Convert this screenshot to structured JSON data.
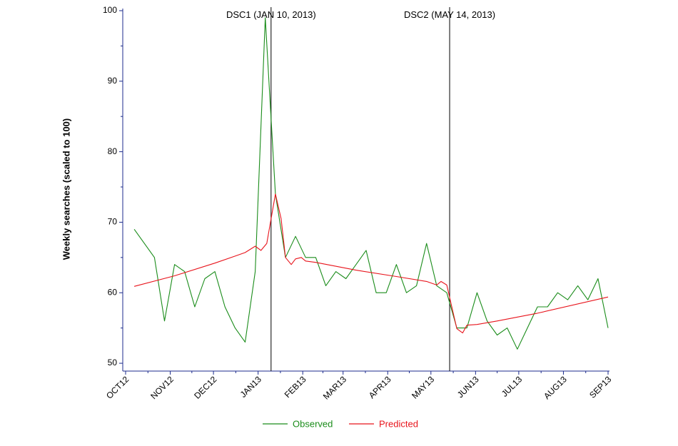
{
  "chart_data": {
    "type": "line",
    "title": "",
    "xlabel": "",
    "ylabel": "Weekly searches (scaled to 100)",
    "ylim": [
      49.5,
      100.3
    ],
    "yticks": [
      50,
      60,
      70,
      80,
      90,
      100
    ],
    "x_axis": {
      "type": "date",
      "range": [
        "2012-10-01",
        "2013-09-01"
      ],
      "ticks": [
        {
          "date": "2012-10-01",
          "label": "OCT12"
        },
        {
          "date": "2012-11-01",
          "label": "NOV12"
        },
        {
          "date": "2012-12-01",
          "label": "DEC12"
        },
        {
          "date": "2013-01-01",
          "label": "JAN13"
        },
        {
          "date": "2013-02-01",
          "label": "FEB13"
        },
        {
          "date": "2013-03-01",
          "label": "MAR13"
        },
        {
          "date": "2013-04-01",
          "label": "APR13"
        },
        {
          "date": "2013-05-01",
          "label": "MAY13"
        },
        {
          "date": "2013-06-01",
          "label": "JUN13"
        },
        {
          "date": "2013-07-01",
          "label": "JUL13"
        },
        {
          "date": "2013-08-01",
          "label": "AUG13"
        },
        {
          "date": "2013-09-01",
          "label": "SEP13"
        }
      ]
    },
    "events": [
      {
        "date": "2013-01-10",
        "label": "DSC1 (JAN 10, 2013)"
      },
      {
        "date": "2013-05-14",
        "label": "DSC2 (MAY 14, 2013)"
      }
    ],
    "series": [
      {
        "name": "Observed",
        "color": "#1a8c1a",
        "x": [
          "2012-10-07",
          "2012-10-21",
          "2012-10-28",
          "2012-11-04",
          "2012-11-11",
          "2012-11-18",
          "2012-11-25",
          "2012-12-02",
          "2012-12-09",
          "2012-12-16",
          "2012-12-23",
          "2012-12-30",
          "2013-01-06",
          "2013-01-13",
          "2013-01-20",
          "2013-01-27",
          "2013-02-03",
          "2013-02-10",
          "2013-02-17",
          "2013-02-24",
          "2013-03-03",
          "2013-03-10",
          "2013-03-17",
          "2013-03-24",
          "2013-03-31",
          "2013-04-07",
          "2013-04-14",
          "2013-04-21",
          "2013-04-28",
          "2013-05-05",
          "2013-05-12",
          "2013-05-19",
          "2013-05-26",
          "2013-06-02",
          "2013-06-09",
          "2013-06-16",
          "2013-06-23",
          "2013-06-30",
          "2013-07-07",
          "2013-07-14",
          "2013-07-21",
          "2013-07-28",
          "2013-08-04",
          "2013-08-11",
          "2013-08-18",
          "2013-08-25",
          "2013-09-01"
        ],
        "y": [
          69,
          65,
          56,
          64,
          63,
          58,
          62,
          63,
          58,
          55,
          53,
          63,
          99,
          74,
          65,
          68,
          65,
          65,
          61,
          63,
          62,
          64,
          66,
          60,
          60,
          64,
          60,
          61,
          67,
          61,
          60,
          55,
          55,
          60,
          56,
          54,
          55,
          52,
          55,
          58,
          58,
          60,
          59,
          61,
          59,
          62,
          55
        ]
      },
      {
        "name": "Predicted",
        "color": "#e8141c",
        "x": [
          "2012-10-07",
          "2012-11-04",
          "2012-12-02",
          "2012-12-16",
          "2012-12-23",
          "2012-12-30",
          "2013-01-03",
          "2013-01-07",
          "2013-01-13",
          "2013-01-17",
          "2013-01-20",
          "2013-01-24",
          "2013-01-27",
          "2013-01-31",
          "2013-02-03",
          "2013-02-10",
          "2013-03-10",
          "2013-04-07",
          "2013-04-28",
          "2013-05-05",
          "2013-05-08",
          "2013-05-12",
          "2013-05-19",
          "2013-05-23",
          "2013-05-26",
          "2013-06-02",
          "2013-06-16",
          "2013-07-14",
          "2013-09-01"
        ],
        "y": [
          60.9,
          62.4,
          64.2,
          65.2,
          65.7,
          66.6,
          66.0,
          67.0,
          74.0,
          70.5,
          65.0,
          64.0,
          64.8,
          65.0,
          64.5,
          64.3,
          63.2,
          62.3,
          61.6,
          61.1,
          61.6,
          61.1,
          54.9,
          54.3,
          55.4,
          55.5,
          56.0,
          57.1,
          59.4
        ]
      }
    ],
    "legend": {
      "position": "bottom-center",
      "entries": [
        {
          "label": "Observed",
          "color": "#1a8c1a"
        },
        {
          "label": "Predicted",
          "color": "#e8141c"
        }
      ]
    },
    "grid": false
  }
}
